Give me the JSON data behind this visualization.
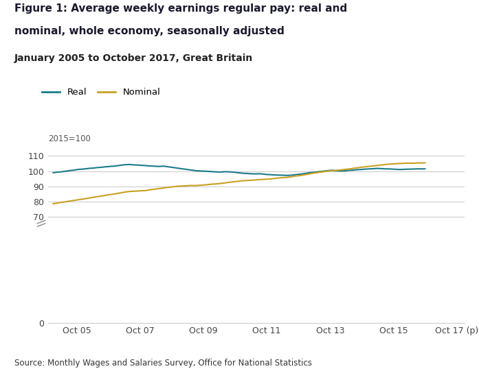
{
  "title_line1": "Figure 1: Average weekly earnings regular pay: real and",
  "title_line2": "nominal, whole economy, seasonally adjusted",
  "subtitle": "January 2005 to October 2017, Great Britain",
  "source": "Source: Monthly Wages and Salaries Survey, Office for National Statistics",
  "ylabel_annotation": "2015=100",
  "legend_labels": [
    "Real",
    "Nominal"
  ],
  "real_color": "#1a7a8a",
  "nominal_color": "#c8a020",
  "background_color": "#ffffff",
  "grid_color": "#cccccc",
  "title_color": "#1a1a2e",
  "subtitle_color": "#222222",
  "ylim": [
    0,
    115
  ],
  "yticks": [
    0,
    70,
    80,
    90,
    100,
    110
  ],
  "xtick_labels": [
    "Oct 05",
    "Oct 07",
    "Oct 09",
    "Oct 11",
    "Oct 13",
    "Oct 15",
    "Oct 17 (p)"
  ],
  "real_data": [
    99.0,
    99.2,
    99.4,
    99.5,
    99.8,
    100.0,
    100.3,
    100.5,
    100.7,
    101.0,
    101.2,
    101.3,
    101.5,
    101.7,
    101.9,
    102.0,
    102.2,
    102.4,
    102.5,
    102.7,
    102.9,
    103.0,
    103.2,
    103.3,
    103.5,
    103.7,
    104.0,
    104.2,
    104.3,
    104.4,
    104.2,
    104.1,
    104.0,
    103.9,
    103.8,
    103.7,
    103.5,
    103.4,
    103.3,
    103.2,
    103.1,
    103.2,
    103.3,
    103.0,
    102.8,
    102.5,
    102.3,
    102.0,
    101.8,
    101.5,
    101.3,
    101.0,
    100.8,
    100.6,
    100.3,
    100.2,
    100.1,
    100.0,
    99.9,
    99.8,
    99.7,
    99.6,
    99.5,
    99.4,
    99.5,
    99.6,
    99.6,
    99.5,
    99.4,
    99.2,
    99.0,
    98.8,
    98.6,
    98.5,
    98.4,
    98.3,
    98.2,
    98.2,
    98.3,
    98.2,
    98.0,
    97.8,
    97.7,
    97.6,
    97.5,
    97.4,
    97.4,
    97.3,
    97.2,
    97.2,
    97.3,
    97.5,
    97.7,
    97.9,
    98.1,
    98.3,
    98.6,
    98.9,
    99.1,
    99.3,
    99.5,
    99.7,
    99.9,
    100.1,
    100.3,
    100.5,
    100.5,
    100.3,
    100.2,
    100.1,
    100.2,
    100.3,
    100.5,
    100.6,
    100.7,
    100.9,
    101.0,
    101.1,
    101.3,
    101.4,
    101.5,
    101.6,
    101.7,
    101.8,
    101.7,
    101.6,
    101.5,
    101.5,
    101.4,
    101.3,
    101.2,
    101.1,
    101.1,
    101.2,
    101.3,
    101.3,
    101.4,
    101.4,
    101.5,
    101.5,
    101.5,
    101.5
  ],
  "nominal_data": [
    78.5,
    78.8,
    79.1,
    79.4,
    79.6,
    79.9,
    80.2,
    80.5,
    80.7,
    81.0,
    81.3,
    81.5,
    81.8,
    82.1,
    82.4,
    82.7,
    83.0,
    83.2,
    83.5,
    83.8,
    84.1,
    84.4,
    84.6,
    84.9,
    85.2,
    85.5,
    85.8,
    86.1,
    86.4,
    86.6,
    86.7,
    86.8,
    86.9,
    87.0,
    87.1,
    87.2,
    87.5,
    87.8,
    88.0,
    88.2,
    88.5,
    88.7,
    89.0,
    89.2,
    89.4,
    89.6,
    89.8,
    90.0,
    90.1,
    90.2,
    90.3,
    90.4,
    90.5,
    90.5,
    90.5,
    90.6,
    90.7,
    90.8,
    91.0,
    91.2,
    91.4,
    91.5,
    91.6,
    91.8,
    92.0,
    92.2,
    92.5,
    92.7,
    92.9,
    93.1,
    93.3,
    93.5,
    93.7,
    93.8,
    93.9,
    94.0,
    94.1,
    94.2,
    94.4,
    94.5,
    94.6,
    94.7,
    94.8,
    95.0,
    95.2,
    95.4,
    95.6,
    95.7,
    95.8,
    96.0,
    96.2,
    96.5,
    96.8,
    97.0,
    97.2,
    97.5,
    97.8,
    98.1,
    98.5,
    98.8,
    99.0,
    99.3,
    99.5,
    99.8,
    100.0,
    100.2,
    100.4,
    100.5,
    100.6,
    100.8,
    101.0,
    101.2,
    101.4,
    101.6,
    101.9,
    102.1,
    102.4,
    102.6,
    102.8,
    103.0,
    103.2,
    103.4,
    103.6,
    103.8,
    104.0,
    104.2,
    104.4,
    104.6,
    104.7,
    104.8,
    104.9,
    105.0,
    105.1,
    105.2,
    105.3,
    105.3,
    105.2,
    105.3,
    105.4,
    105.4,
    105.4,
    105.5
  ]
}
